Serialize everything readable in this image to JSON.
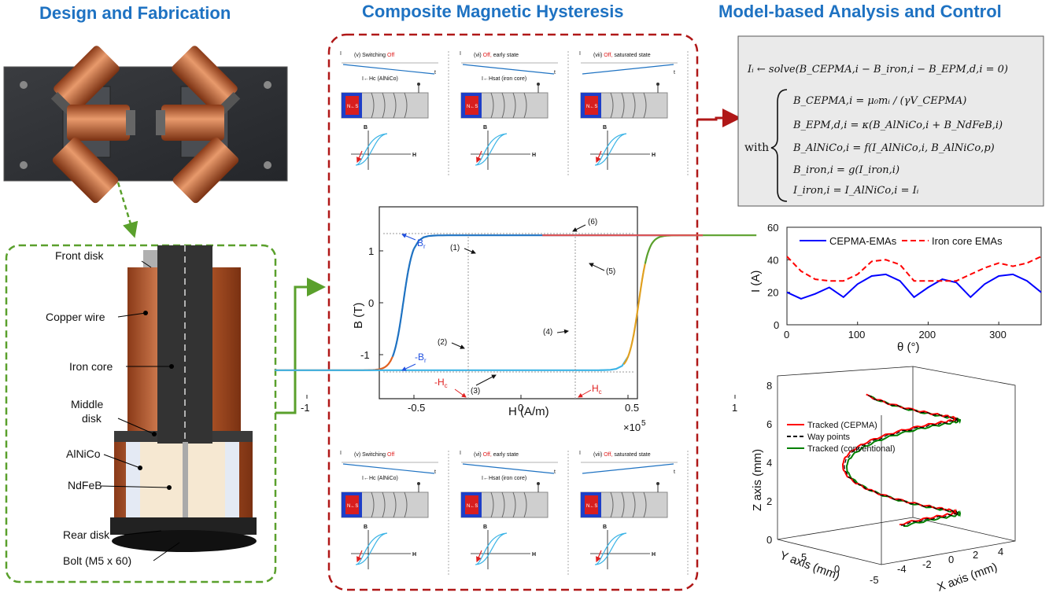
{
  "titles": {
    "left": "Design and Fabrication",
    "middle": "Composite Magnetic Hysteresis",
    "right": "Model-based Analysis and Control"
  },
  "parts": [
    "Front disk",
    "Copper wire",
    "Iron core",
    "Middle",
    "disk",
    "AlNiCo",
    "NdFeB",
    "Rear disk",
    "Bolt (M5 x 60)"
  ],
  "mini_panels": [
    {
      "title_pre": "(v) Switching ",
      "title_red": "Off",
      "title_post": "",
      "note": "I←Hc (AlNiCo)"
    },
    {
      "title_pre": "(vi) ",
      "title_red": "Off,",
      "title_post": " early state",
      "note": "I←Hsat (iron core)"
    },
    {
      "title_pre": "(vii) ",
      "title_red": "Off,",
      "title_post": " saturated state",
      "note": ""
    }
  ],
  "mini_labels": {
    "current": "I",
    "field": "B",
    "hfield": "H",
    "tlabel": "t",
    "mag": "N←S"
  },
  "hysteresis": {
    "xlabel": "H (A/m)",
    "ylabel": "B (T)",
    "x_ticks": [
      "-1",
      "-0.5",
      "0",
      "0.5",
      "1"
    ],
    "y_ticks": [
      "1",
      "0",
      "-1"
    ],
    "multiplier": "×10",
    "multiplier_exp": "5",
    "br": "B",
    "br_sub": "r",
    "neg_br": "-B",
    "hc": "H",
    "neg_hc": "-H",
    "hc_sub": "c",
    "branches": [
      "(1)",
      "(2)",
      "(3)",
      "(4)",
      "(5)",
      "(6)"
    ]
  },
  "equations": {
    "line1": "Iᵢ ← solve(B_CEPMA,i − B_iron,i − B_EPM,d,i = 0)",
    "with": "with",
    "lines": [
      "B_CEPMA,i = μ₀mᵢ / (γV_CEPMA)",
      "B_EPM,d,i = κ(B_AlNiCo,i + B_NdFeB,i)",
      "B_AlNiCo,i = f(I_AlNiCo,i, B_AlNiCo,p)",
      "B_iron,i = g(I_iron,i)",
      "I_iron,i = I_AlNiCo,i = Iᵢ"
    ]
  },
  "chart_data": [
    {
      "type": "line",
      "title": "",
      "xlabel": "θ (°)",
      "ylabel": "I (A)",
      "xlim": [
        0,
        360
      ],
      "ylim": [
        0,
        60
      ],
      "x_ticks": [
        "0",
        "100",
        "200",
        "300"
      ],
      "y_ticks": [
        "0",
        "20",
        "40",
        "60"
      ],
      "legend_position": "top",
      "series": [
        {
          "name": "CEPMA-EMAs",
          "color": "#0000ff",
          "x": [
            0,
            20,
            40,
            60,
            80,
            100,
            120,
            140,
            160,
            180,
            200,
            220,
            240,
            260,
            280,
            300,
            320,
            340,
            360
          ],
          "y": [
            20,
            16,
            19,
            23,
            17,
            25,
            30,
            31,
            27,
            17,
            23,
            28,
            26,
            17,
            25,
            30,
            31,
            27,
            20
          ]
        },
        {
          "name": "Iron core EMAs",
          "color": "#ff0000",
          "x": [
            0,
            20,
            40,
            60,
            80,
            100,
            120,
            140,
            160,
            180,
            200,
            220,
            240,
            260,
            280,
            300,
            320,
            340,
            360
          ],
          "y": [
            42,
            33,
            28,
            27,
            27,
            31,
            39,
            40,
            37,
            27,
            27,
            27,
            27,
            31,
            35,
            38,
            36,
            38,
            42
          ]
        }
      ]
    },
    {
      "type": "line",
      "title": "",
      "xlabel": "X axis (mm)",
      "ylabel": "Y axis (mm)",
      "zlabel": "Z axis (mm)",
      "x_ticks": [
        "-4",
        "-2",
        "0",
        "2",
        "4"
      ],
      "y_ticks": [
        "5",
        "0",
        "-5"
      ],
      "z_ticks": [
        "0",
        "2",
        "4",
        "6",
        "8"
      ],
      "legend_position": "inside-left",
      "series": [
        {
          "name": "Tracked (CEPMA)",
          "color": "#ff0000"
        },
        {
          "name": "Way points",
          "color": "#000000"
        },
        {
          "name": "Tracked (conventional)",
          "color": "#008000"
        }
      ]
    }
  ]
}
